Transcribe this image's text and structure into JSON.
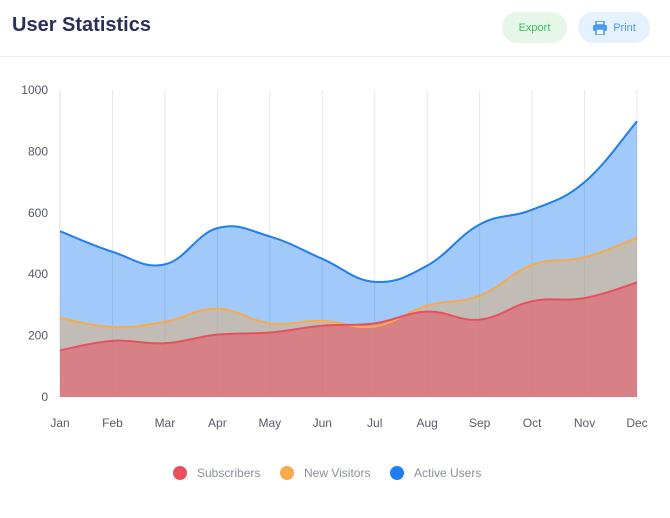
{
  "header": {
    "title": "User Statistics",
    "export_label": "Export",
    "print_label": "Print",
    "print_icon": "printer-icon"
  },
  "colors": {
    "subscribers": "#e9505e",
    "new_visitors": "#f7ab4a",
    "active_users": "#1f7ef0",
    "export_text": "#35c25a",
    "print_text": "#4a9bf0",
    "title": "#2a2f5b"
  },
  "chart_data": {
    "type": "area",
    "categories": [
      "Jan",
      "Feb",
      "Mar",
      "Apr",
      "May",
      "Jun",
      "Jul",
      "Aug",
      "Sep",
      "Oct",
      "Nov",
      "Dec"
    ],
    "ylim": [
      0,
      1000
    ],
    "yticks": [
      0,
      200,
      400,
      600,
      800,
      1000
    ],
    "grid": "vertical",
    "legend_position": "bottom",
    "series": [
      {
        "name": "Subscribers",
        "color": "#e9505e",
        "values": [
          152,
          183,
          175,
          203,
          210,
          232,
          240,
          278,
          252,
          312,
          322,
          373
        ]
      },
      {
        "name": "New Visitors",
        "color": "#f7ab4a",
        "values": [
          258,
          228,
          245,
          288,
          240,
          248,
          230,
          298,
          330,
          430,
          455,
          518
        ]
      },
      {
        "name": "Active Users",
        "color": "#1f7ef0",
        "values": [
          540,
          473,
          432,
          550,
          523,
          450,
          375,
          428,
          562,
          610,
          700,
          898
        ]
      }
    ]
  }
}
